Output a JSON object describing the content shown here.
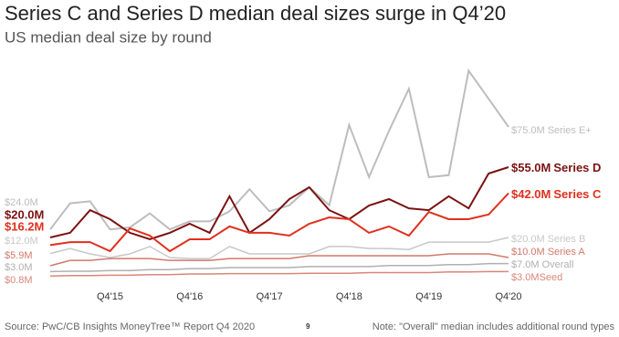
{
  "chart_data": {
    "type": "line",
    "title": "Series C and Series D median deal sizes surge in Q4’20",
    "subtitle": "US median deal size by round",
    "source": "Source: PwC/CB Insights MoneyTree™ Report Q4 2020",
    "page_number": "9",
    "note": "Note: \"Overall\" median includes additional round types",
    "categories": [
      null,
      null,
      null,
      "Q4'15",
      null,
      null,
      null,
      "Q4'16",
      null,
      null,
      null,
      "Q4'17",
      null,
      null,
      null,
      "Q4'18",
      null,
      null,
      null,
      "Q4'19",
      null,
      null,
      null,
      "Q4'20"
    ],
    "ylim": [
      0,
      110
    ],
    "series": [
      {
        "name": "Series E+",
        "color": "#bdbdbd",
        "values": [
          24,
          37,
          38,
          24,
          25,
          32,
          24,
          28,
          28,
          33,
          44,
          33,
          36,
          45,
          36,
          76,
          50,
          73,
          94,
          50,
          51,
          103,
          89,
          75
        ],
        "value_labels": [
          "$24.0M",
          null,
          null,
          null,
          null,
          null,
          null,
          null,
          null,
          null,
          null,
          null,
          null,
          null,
          null,
          null,
          null,
          null,
          null,
          null,
          null,
          null,
          null,
          "$75.0M"
        ]
      },
      {
        "name": "Series D",
        "color": "#7b1212",
        "values": [
          20,
          22.3,
          33.6,
          29.1,
          22.3,
          19.1,
          22.3,
          26.8,
          22.3,
          40.5,
          22.3,
          29.1,
          39.1,
          45,
          33.6,
          29.1,
          35.9,
          39.1,
          34.5,
          33.6,
          40.5,
          34.5,
          51.8,
          55
        ],
        "value_labels": [
          "$20.0M",
          null,
          null,
          null,
          null,
          null,
          null,
          null,
          null,
          null,
          null,
          null,
          null,
          null,
          null,
          null,
          null,
          null,
          null,
          null,
          null,
          null,
          null,
          "$55.0M"
        ]
      },
      {
        "name": "Series C",
        "color": "#e0301e",
        "values": [
          16.2,
          17.7,
          17.7,
          13.2,
          24.5,
          20.9,
          13.2,
          19.1,
          19.1,
          25.5,
          22.3,
          22.3,
          20.9,
          26.8,
          30,
          29.1,
          22.3,
          25.5,
          20.9,
          32.7,
          29.1,
          29.1,
          31.4,
          42
        ],
        "value_labels": [
          "$16.2M",
          null,
          null,
          null,
          null,
          null,
          null,
          null,
          null,
          null,
          null,
          null,
          null,
          null,
          null,
          null,
          null,
          null,
          null,
          null,
          null,
          null,
          null,
          "$42.0M"
        ]
      },
      {
        "name": "Series B",
        "color": "#c8c8c8",
        "values": [
          12,
          14.5,
          11.8,
          10,
          11.8,
          15.5,
          10,
          9.5,
          9.5,
          15.5,
          11.8,
          11.8,
          11.8,
          11.8,
          15.5,
          15.5,
          14.5,
          14.5,
          14,
          17.7,
          17.7,
          17.7,
          17.7,
          20
        ],
        "value_labels": [
          "$12.0M",
          null,
          null,
          null,
          null,
          null,
          null,
          null,
          null,
          null,
          null,
          null,
          null,
          null,
          null,
          null,
          null,
          null,
          null,
          null,
          null,
          null,
          null,
          "$20.0M"
        ]
      },
      {
        "name": "Series A",
        "color": "#d07a6a",
        "values": [
          5.9,
          8.6,
          8.6,
          9.5,
          9.5,
          9.5,
          8.6,
          8.6,
          8.6,
          9.5,
          9.5,
          9.5,
          9.5,
          10.9,
          10.9,
          10.9,
          10.9,
          10.9,
          10.9,
          10.9,
          11.8,
          11.8,
          11.8,
          10
        ],
        "value_labels": [
          "$5.9M",
          null,
          null,
          null,
          null,
          null,
          null,
          null,
          null,
          null,
          null,
          null,
          null,
          null,
          null,
          null,
          null,
          null,
          null,
          null,
          null,
          null,
          null,
          "$10.0M"
        ]
      },
      {
        "name": "Overall",
        "color": "#b0b0b0",
        "values": [
          3,
          3.2,
          3.2,
          3.5,
          3.5,
          4,
          4,
          4.5,
          4.5,
          5,
          5,
          5,
          5,
          5.5,
          5.5,
          5.5,
          5.5,
          6,
          6,
          6,
          6.5,
          6.5,
          7,
          7
        ],
        "value_labels": [
          "$3.0M",
          null,
          null,
          null,
          null,
          null,
          null,
          null,
          null,
          null,
          null,
          null,
          null,
          null,
          null,
          null,
          null,
          null,
          null,
          null,
          null,
          null,
          null,
          "$7.0M"
        ]
      },
      {
        "name": "Seed",
        "color": "#d9867a",
        "values": [
          0.8,
          1,
          1,
          1.2,
          1.2,
          1.5,
          1.5,
          1.8,
          1.8,
          2,
          2,
          2,
          2,
          2.2,
          2.2,
          2.2,
          2.5,
          2.5,
          2.5,
          2.5,
          2.8,
          2.8,
          3,
          3
        ],
        "value_labels": [
          "$0.8M",
          null,
          null,
          null,
          null,
          null,
          null,
          null,
          null,
          null,
          null,
          null,
          null,
          null,
          null,
          null,
          null,
          null,
          null,
          null,
          null,
          null,
          null,
          "$3.0M"
        ]
      }
    ]
  }
}
